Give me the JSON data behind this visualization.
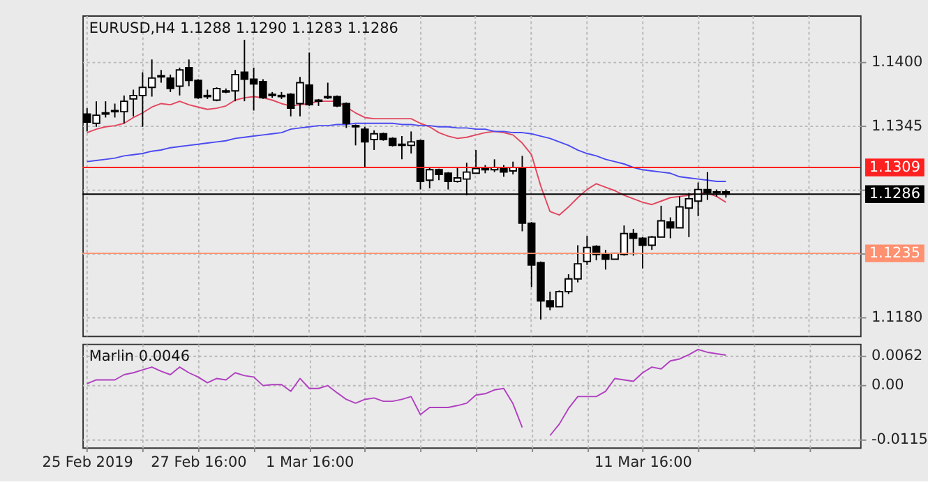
{
  "chart_data": [
    {
      "type": "candlestick",
      "title": "EURUSD,H4 1.1288 1.1290 1.1283 1.1286",
      "categories": [
        null,
        null,
        null,
        null,
        null,
        null,
        null,
        null,
        null,
        null,
        null,
        null,
        null,
        null,
        null,
        null,
        null,
        null,
        null,
        null,
        null,
        null,
        null,
        null,
        null,
        null,
        null,
        null,
        null,
        null,
        null,
        null,
        null,
        null,
        null,
        null,
        null,
        null,
        null,
        null,
        null,
        null,
        null,
        null,
        null,
        null,
        null,
        null,
        null,
        null,
        null,
        null,
        null,
        null,
        null,
        null,
        null,
        null,
        null,
        null,
        null,
        null,
        null,
        null,
        null,
        null,
        null,
        null,
        null,
        null,
        null,
        null,
        null,
        null,
        null,
        null,
        null,
        null,
        null,
        null,
        null,
        null,
        null,
        null
      ],
      "ohlc": [
        [
          1.1355,
          1.136,
          1.134,
          1.1348
        ],
        [
          1.1347,
          1.1366,
          1.1344,
          1.1354
        ],
        [
          1.1355,
          1.1366,
          1.1352,
          1.1356
        ],
        [
          1.1357,
          1.1364,
          1.1352,
          1.1358
        ],
        [
          1.1357,
          1.1371,
          1.1347,
          1.1366
        ],
        [
          1.1368,
          1.1376,
          1.1353,
          1.1371
        ],
        [
          1.1371,
          1.1391,
          1.1344,
          1.1378
        ],
        [
          1.1378,
          1.1402,
          1.137,
          1.1386
        ],
        [
          1.1387,
          1.1393,
          1.1382,
          1.1388
        ],
        [
          1.1386,
          1.1389,
          1.1374,
          1.1377
        ],
        [
          1.1379,
          1.1395,
          1.1371,
          1.1393
        ],
        [
          1.1395,
          1.1402,
          1.1379,
          1.1384
        ],
        [
          1.1384,
          1.1385,
          1.1368,
          1.1369
        ],
        [
          1.1371,
          1.1376,
          1.1368,
          1.137
        ],
        [
          1.1367,
          1.1378,
          1.1366,
          1.1377
        ],
        [
          1.1374,
          1.1377,
          1.1373,
          1.1375
        ],
        [
          1.1375,
          1.1393,
          1.1366,
          1.1389
        ],
        [
          1.1391,
          1.1419,
          1.1366,
          1.1385
        ],
        [
          1.1385,
          1.1395,
          1.1358,
          1.1381
        ],
        [
          1.1383,
          1.1385,
          1.1368,
          1.1369
        ],
        [
          1.1372,
          1.1374,
          1.1369,
          1.1371
        ],
        [
          1.137,
          1.1374,
          1.1368,
          1.1371
        ],
        [
          1.1372,
          1.1373,
          1.1353,
          1.136
        ],
        [
          1.1364,
          1.1387,
          1.1353,
          1.1382
        ],
        [
          1.138,
          1.1408,
          1.1362,
          1.1363
        ],
        [
          1.1366,
          1.1368,
          1.1362,
          1.1367
        ],
        [
          1.1369,
          1.1382,
          1.1368,
          1.137
        ],
        [
          1.137,
          1.1371,
          1.1361,
          1.1362
        ],
        [
          1.1364,
          1.1365,
          1.1343,
          1.1347
        ],
        [
          1.1345,
          1.1346,
          1.1328,
          1.1344
        ],
        [
          1.1342,
          1.1344,
          1.1309,
          1.1331
        ],
        [
          1.1333,
          1.1341,
          1.1324,
          1.1338
        ],
        [
          1.1338,
          1.1339,
          1.1332,
          1.1333
        ],
        [
          1.1334,
          1.1335,
          1.1327,
          1.1328
        ],
        [
          1.1329,
          1.1336,
          1.1316,
          1.1328
        ],
        [
          1.1328,
          1.134,
          1.1321,
          1.1331
        ],
        [
          1.1332,
          1.1333,
          1.129,
          1.1297
        ],
        [
          1.1298,
          1.1309,
          1.1291,
          1.1307
        ],
        [
          1.1307,
          1.1308,
          1.1298,
          1.1303
        ],
        [
          1.1304,
          1.1305,
          1.129,
          1.1297
        ],
        [
          1.1297,
          1.1309,
          1.1296,
          1.13
        ],
        [
          1.1299,
          1.1313,
          1.1285,
          1.1305
        ],
        [
          1.1304,
          1.1324,
          1.1304,
          1.1308
        ],
        [
          1.1307,
          1.1311,
          1.1304,
          1.1308
        ],
        [
          1.1307,
          1.1316,
          1.1305,
          1.1309
        ],
        [
          1.1309,
          1.1311,
          1.1301,
          1.1305
        ],
        [
          1.1306,
          1.1314,
          1.1303,
          1.1309
        ],
        [
          1.1309,
          1.1319,
          1.1254,
          1.1261
        ],
        [
          1.1261,
          1.1262,
          1.1206,
          1.1225
        ],
        [
          1.1227,
          1.1228,
          1.1178,
          1.1194
        ],
        [
          1.1194,
          1.1202,
          1.1186,
          1.1189
        ],
        [
          1.1189,
          1.1203,
          1.1189,
          1.1202
        ],
        [
          1.1202,
          1.1217,
          1.12,
          1.1213
        ],
        [
          1.1213,
          1.1242,
          1.121,
          1.1226
        ],
        [
          1.1228,
          1.125,
          1.1225,
          1.124
        ],
        [
          1.1241,
          1.1242,
          1.1229,
          1.1234
        ],
        [
          1.1234,
          1.1238,
          1.1221,
          1.123
        ],
        [
          1.123,
          1.1235,
          1.123,
          1.1235
        ],
        [
          1.1234,
          1.1259,
          1.1233,
          1.1252
        ],
        [
          1.1252,
          1.1256,
          1.1233,
          1.1248
        ],
        [
          1.1248,
          1.1249,
          1.1222,
          1.1242
        ],
        [
          1.1242,
          1.125,
          1.1238,
          1.1249
        ],
        [
          1.1249,
          1.1276,
          1.1249,
          1.1263
        ],
        [
          1.1262,
          1.1266,
          1.1248,
          1.1257
        ],
        [
          1.1257,
          1.1284,
          1.1257,
          1.1275
        ],
        [
          1.1274,
          1.1287,
          1.1249,
          1.1282
        ],
        [
          1.128,
          1.1296,
          1.1267,
          1.129
        ],
        [
          1.129,
          1.1305,
          1.1281,
          1.1287
        ],
        [
          1.1288,
          1.129,
          1.1284,
          1.1287
        ],
        [
          1.1288,
          1.129,
          1.1283,
          1.1286
        ],
        null,
        null,
        null,
        null,
        null,
        null,
        null,
        null,
        null,
        null,
        null,
        null,
        null,
        null
      ],
      "series": [
        {
          "type": "line",
          "color": "#e2465e",
          "values": [
            1.1339,
            1.1342,
            1.1344,
            1.1345,
            1.1347,
            1.1352,
            1.1356,
            1.1361,
            1.1364,
            1.1363,
            1.1366,
            1.1363,
            1.1361,
            1.1359,
            1.136,
            1.1362,
            1.1367,
            1.1369,
            1.137,
            1.1369,
            1.1367,
            1.1364,
            1.1362,
            1.1363,
            1.1364,
            1.1366,
            1.1366,
            1.1366,
            1.1361,
            1.1356,
            1.1352,
            1.1351,
            1.1351,
            1.1351,
            1.1351,
            1.1351,
            1.1347,
            1.1344,
            1.1339,
            1.1336,
            1.1334,
            1.1335,
            1.1337,
            1.1339,
            1.134,
            1.1339,
            1.1337,
            1.133,
            1.132,
            1.1293,
            1.1271,
            1.1268,
            1.1275,
            1.1283,
            1.129,
            1.1295,
            1.1292,
            1.1289,
            1.1285,
            1.1282,
            1.1279,
            1.1277,
            1.128,
            1.1283,
            1.1284,
            1.1285,
            1.1287,
            1.1287,
            1.1284,
            1.1279,
            null,
            null,
            null,
            null,
            null,
            null,
            null,
            null,
            null,
            null,
            null,
            null,
            null,
            null
          ]
        },
        {
          "type": "line",
          "color": "#4a4af0",
          "values": [
            1.1314,
            1.1315,
            1.1316,
            1.1317,
            1.1319,
            1.132,
            1.1321,
            1.1323,
            1.1324,
            1.1326,
            1.1327,
            1.1328,
            1.1329,
            1.133,
            1.1331,
            1.1332,
            1.1334,
            1.1335,
            1.1336,
            1.1337,
            1.1338,
            1.1339,
            1.1342,
            1.1343,
            1.1344,
            1.1345,
            1.1345,
            1.1346,
            1.1346,
            1.1347,
            1.1347,
            1.1347,
            1.1347,
            1.1347,
            1.1346,
            1.1346,
            1.1345,
            1.1345,
            1.1344,
            1.1344,
            1.1343,
            1.1343,
            1.1342,
            1.1342,
            1.134,
            1.134,
            1.1339,
            1.1339,
            1.1338,
            1.1336,
            1.1334,
            1.1331,
            1.1328,
            1.1324,
            1.1321,
            1.1319,
            1.1316,
            1.1314,
            1.1312,
            1.1309,
            1.1307,
            1.1306,
            1.1305,
            1.1304,
            1.1301,
            1.13,
            1.1299,
            1.1298,
            1.1297,
            1.1297,
            null,
            null,
            null,
            null,
            null,
            null,
            null,
            null,
            null,
            null,
            null,
            null,
            null,
            null
          ]
        }
      ],
      "ylim": [
        1.1164,
        1.144
      ],
      "yticks": [
        {
          "value": 1.118,
          "label": "1.1180"
        },
        {
          "value": 1.1235,
          "label": null
        },
        {
          "value": 1.129,
          "label": null
        },
        1.1345,
        {
          "value": 1.14,
          "label": "1.1400"
        }
      ],
      "ref_lines": [
        {
          "axis": "y",
          "value": 1.1309,
          "label": "1.1309",
          "color": "#ff2020"
        },
        {
          "axis": "y",
          "value": 1.1286,
          "label": "1.1286",
          "color": "#000000"
        },
        {
          "axis": "y",
          "value": 1.1235,
          "label": "1.1235",
          "color": "#ff9070"
        }
      ],
      "grid": true,
      "tick_labels": "y"
    },
    {
      "type": "line",
      "title": "Marlin 0.0046",
      "categories": [
        "25 Feb 2019",
        null,
        null,
        null,
        null,
        null,
        null,
        null,
        null,
        null,
        null,
        null,
        "27 Feb 16:00",
        null,
        null,
        null,
        null,
        null,
        null,
        null,
        null,
        null,
        null,
        null,
        "1 Mar 16:00",
        null,
        null,
        null,
        null,
        null,
        null,
        null,
        null,
        null,
        null,
        null,
        null,
        null,
        null,
        null,
        null,
        null,
        null,
        null,
        null,
        null,
        null,
        null,
        null,
        null,
        null,
        null,
        null,
        null,
        null,
        null,
        null,
        null,
        null,
        null,
        "11 Mar 16:00",
        null,
        null,
        null,
        null,
        null,
        null,
        null,
        null,
        null,
        null,
        null,
        null,
        null,
        null,
        null,
        null,
        null,
        null,
        null,
        null,
        null,
        null,
        null
      ],
      "series": [
        {
          "color": "#b040c0",
          "values": [
            0.0002,
            0.001,
            0.001,
            0.001,
            0.0021,
            0.0025,
            0.0031,
            0.0037,
            0.0028,
            0.0021,
            0.0037,
            0.0025,
            0.0016,
            0.0004,
            0.0013,
            0.001,
            0.0025,
            0.0019,
            0.0016,
            -0.0002,
            0.0,
            0.0,
            -0.0014,
            0.0013,
            -0.0008,
            -0.0008,
            -0.0002,
            -0.0017,
            -0.0031,
            -0.0039,
            -0.0031,
            -0.0028,
            -0.0035,
            -0.0035,
            -0.0031,
            -0.0025,
            -0.0063,
            -0.0048,
            -0.0048,
            -0.0048,
            -0.0044,
            -0.0039,
            -0.0022,
            -0.0019,
            -0.0011,
            -0.0008,
            -0.004,
            -0.009,
            null,
            null,
            -0.0107,
            -0.0083,
            -0.005,
            -0.0025,
            -0.0025,
            -0.0025,
            -0.0014,
            0.0013,
            0.001,
            0.0007,
            0.0025,
            0.0037,
            0.0033,
            0.005,
            0.0054,
            0.0063,
            0.0074,
            0.0068,
            0.0065,
            0.0062,
            null,
            null,
            null,
            null,
            null,
            null,
            null,
            null,
            null,
            null,
            null,
            null,
            null,
            null
          ]
        }
      ],
      "ylim": [
        -0.0132,
        0.0086
      ],
      "yticks": [
        0.0062,
        {
          "value": 0,
          "label": "0.00"
        },
        -0.0115
      ],
      "grid": true
    }
  ]
}
